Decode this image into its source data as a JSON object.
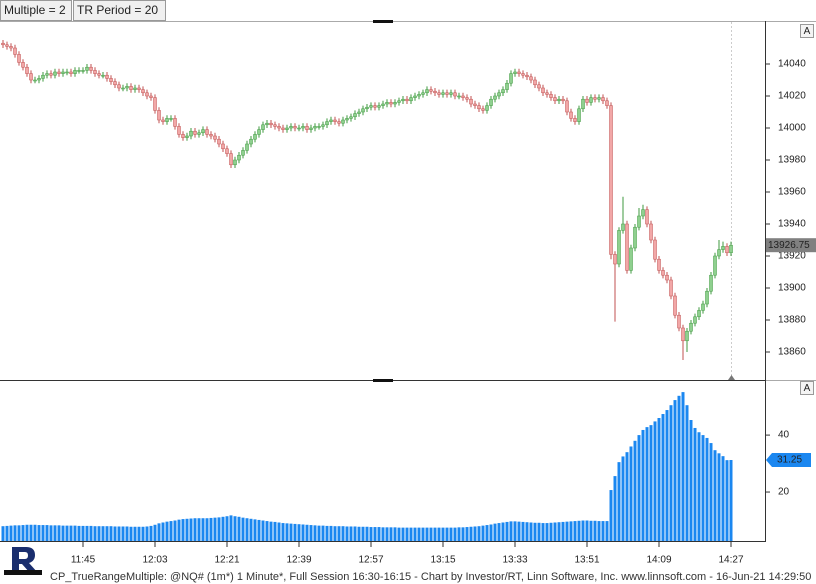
{
  "toolbar": {
    "buttons": [
      "Multiple = 2",
      "TR Period = 20"
    ]
  },
  "pane_buttons": [
    "A",
    "A"
  ],
  "footer": "CP_TrueRangeMultiple: @NQ# (1m*) 1 Minute*, Full Session 16:30-16:15 - Chart by Investor/RT, Linn Software, Inc. www.linnsoft.com - 16-Jun-21 14:29:50",
  "chart_data": [
    {
      "type": "candlestick",
      "up_color": "#8fd08f",
      "down_color": "#f2a7a7",
      "tag_color": "#808080",
      "ylim": [
        13842.5,
        14066.25
      ],
      "yticks": [
        14040,
        14020,
        14000,
        13980,
        13960,
        13940,
        13920,
        13900,
        13880,
        13860
      ],
      "open": [
        14053,
        14052,
        14051,
        14050,
        14046,
        14041,
        14038,
        14034,
        14030,
        14030,
        14031,
        14033,
        14034,
        14033,
        14035,
        14034,
        14035,
        14035,
        14034,
        14036,
        14036,
        14036,
        14038,
        14036,
        14034,
        14033,
        14033,
        14031,
        14029,
        14027,
        14025,
        14025,
        14026,
        14024,
        14025,
        14024,
        14022,
        14020,
        14019,
        14011,
        14005,
        14004,
        14006,
        14006,
        14001,
        13996,
        13994,
        13995,
        13998,
        13996,
        13997,
        13999,
        13996,
        13995,
        13993,
        13990,
        13987,
        13984,
        13977,
        13980,
        13983,
        13986,
        13990,
        13993,
        13996,
        13999,
        14002,
        14003,
        14002,
        14001,
        14000,
        13999,
        14000,
        14001,
        14000,
        14000,
        14001,
        13999,
        14000,
        14001,
        14001,
        14002,
        14004,
        14005,
        14004,
        14003,
        14005,
        14006,
        14007,
        14009,
        14010,
        14012,
        14013,
        14014,
        14013,
        14014,
        14015,
        14016,
        14015,
        14016,
        14017,
        14018,
        14017,
        14019,
        14020,
        14021,
        14022,
        14024,
        14023,
        14022,
        14021,
        14022,
        14021,
        14022,
        14020,
        14020,
        14019,
        14018,
        14015,
        14014,
        14012,
        14011,
        14014,
        14018,
        14020,
        14022,
        14024,
        14028,
        14034,
        14035,
        14034,
        14033,
        14032,
        14030,
        14027,
        14025,
        14022,
        14021,
        14019,
        14017,
        14018,
        14017,
        14010,
        14006,
        14004,
        14012,
        14018,
        14016,
        14019,
        14018,
        14019,
        14017,
        14014,
        13921,
        13915,
        13936,
        13940,
        13911,
        13925,
        13938,
        13945,
        13949,
        13940,
        13930,
        13918,
        13911,
        13908,
        13905,
        13895,
        13883,
        13875,
        13867,
        13873,
        13878,
        13882,
        13886,
        13890,
        13898,
        13908,
        13920,
        13924,
        13926,
        13922
      ],
      "high": [
        14055,
        14054,
        14053,
        14052,
        14048,
        14043,
        14040,
        14036,
        14032,
        14033,
        14035,
        14036,
        14036,
        14037,
        14037,
        14037,
        14037,
        14037,
        14038,
        14038,
        14038,
        14040,
        14040,
        14038,
        14036,
        14035,
        14035,
        14033,
        14031,
        14029,
        14027,
        14028,
        14028,
        14027,
        14027,
        14026,
        14024,
        14022,
        14021,
        14013,
        14007,
        14008,
        14008,
        14008,
        14003,
        13998,
        13997,
        14000,
        14000,
        13999,
        14001,
        14001,
        13998,
        13997,
        13995,
        13992,
        13989,
        13986,
        13982,
        13985,
        13988,
        13992,
        13995,
        13998,
        14001,
        14004,
        14005,
        14005,
        14004,
        14003,
        14002,
        14002,
        14003,
        14003,
        14002,
        14003,
        14003,
        14002,
        14003,
        14003,
        14004,
        14006,
        14007,
        14007,
        14006,
        14007,
        14008,
        14009,
        14011,
        14012,
        14014,
        14015,
        14016,
        14016,
        14016,
        14017,
        14018,
        14018,
        14018,
        14019,
        14020,
        14020,
        14021,
        14022,
        14023,
        14024,
        14026,
        14026,
        14025,
        14024,
        14024,
        14024,
        14024,
        14024,
        14022,
        14022,
        14021,
        14020,
        14017,
        14016,
        14014,
        14016,
        14020,
        14022,
        14024,
        14026,
        14030,
        14036,
        14037,
        14037,
        14036,
        14035,
        14034,
        14032,
        14029,
        14027,
        14024,
        14023,
        14021,
        14020,
        14020,
        14019,
        14012,
        14008,
        14014,
        14020,
        14020,
        14021,
        14021,
        14021,
        14021,
        14019,
        14016,
        13923,
        13938,
        13957,
        13942,
        13927,
        13940,
        13950,
        13952,
        13951,
        13942,
        13932,
        13920,
        13913,
        13910,
        13907,
        13897,
        13885,
        13877,
        13875,
        13880,
        13884,
        13888,
        13892,
        13900,
        13910,
        13922,
        13930,
        13929,
        13928,
        13929
      ],
      "low": [
        14050,
        14049,
        14048,
        14044,
        14039,
        14036,
        14032,
        14028,
        14028,
        14028,
        14029,
        14031,
        14031,
        14031,
        14032,
        14032,
        14033,
        14032,
        14032,
        14034,
        14034,
        14034,
        14034,
        14032,
        14031,
        14031,
        14029,
        14027,
        14025,
        14023,
        14023,
        14023,
        14022,
        14022,
        14022,
        14020,
        14018,
        14017,
        14009,
        14003,
        14002,
        14002,
        14004,
        13999,
        13994,
        13992,
        13992,
        13993,
        13994,
        13994,
        13995,
        13994,
        13993,
        13991,
        13988,
        13985,
        13982,
        13975,
        13975,
        13978,
        13981,
        13984,
        13988,
        13991,
        13994,
        13997,
        14000,
        14000,
        13999,
        13998,
        13997,
        13997,
        13998,
        13998,
        13998,
        13998,
        13997,
        13997,
        13998,
        13999,
        13999,
        14000,
        14002,
        14002,
        14001,
        14001,
        14003,
        14004,
        14005,
        14007,
        14008,
        14010,
        14011,
        14011,
        14011,
        14012,
        14013,
        14013,
        14013,
        14014,
        14015,
        14015,
        14015,
        14017,
        14018,
        14019,
        14020,
        14021,
        14020,
        14019,
        14019,
        14019,
        14019,
        14018,
        14018,
        14017,
        14016,
        14013,
        14012,
        14010,
        14009,
        14009,
        14012,
        14016,
        14018,
        14020,
        14022,
        14026,
        14032,
        14032,
        14031,
        14030,
        14028,
        14025,
        14023,
        14020,
        14019,
        14017,
        14015,
        14015,
        14015,
        14008,
        14004,
        14002,
        14002,
        14010,
        14014,
        14014,
        14016,
        14016,
        14015,
        14012,
        13918,
        13879,
        13913,
        13934,
        13909,
        13909,
        13923,
        13936,
        13943,
        13938,
        13928,
        13916,
        13909,
        13906,
        13903,
        13893,
        13881,
        13873,
        13855,
        13860,
        13871,
        13876,
        13880,
        13884,
        13888,
        13896,
        13906,
        13918,
        13922,
        13920,
        13920
      ],
      "close": [
        14052,
        14051,
        14050,
        14046,
        14041,
        14038,
        14034,
        14030,
        14030,
        14031,
        14033,
        14034,
        14033,
        14035,
        14034,
        14035,
        14035,
        14034,
        14036,
        14036,
        14036,
        14038,
        14036,
        14034,
        14033,
        14033,
        14031,
        14029,
        14027,
        14025,
        14025,
        14026,
        14024,
        14025,
        14024,
        14022,
        14020,
        14019,
        14011,
        14005,
        14004,
        14006,
        14006,
        14001,
        13996,
        13994,
        13995,
        13998,
        13996,
        13997,
        13999,
        13996,
        13995,
        13993,
        13990,
        13987,
        13984,
        13977,
        13980,
        13983,
        13986,
        13990,
        13993,
        13996,
        13999,
        14002,
        14003,
        14002,
        14001,
        14000,
        13999,
        14000,
        14001,
        14000,
        14000,
        14001,
        13999,
        14000,
        14001,
        14001,
        14002,
        14004,
        14005,
        14004,
        14003,
        14005,
        14006,
        14007,
        14009,
        14010,
        14012,
        14013,
        14014,
        14013,
        14014,
        14015,
        14016,
        14015,
        14016,
        14017,
        14018,
        14017,
        14019,
        14020,
        14021,
        14022,
        14024,
        14023,
        14022,
        14021,
        14022,
        14021,
        14022,
        14020,
        14020,
        14019,
        14018,
        14015,
        14014,
        14012,
        14011,
        14014,
        14018,
        14020,
        14022,
        14024,
        14028,
        14034,
        14035,
        14034,
        14033,
        14032,
        14030,
        14027,
        14025,
        14022,
        14021,
        14019,
        14017,
        14018,
        14017,
        14010,
        14006,
        14004,
        14012,
        14018,
        14016,
        14019,
        14018,
        14019,
        14017,
        14014,
        13921,
        13915,
        13936,
        13940,
        13911,
        13925,
        13938,
        13945,
        13949,
        13940,
        13930,
        13918,
        13911,
        13908,
        13905,
        13895,
        13883,
        13875,
        13867,
        13873,
        13878,
        13882,
        13886,
        13890,
        13898,
        13908,
        13920,
        13924,
        13926,
        13922,
        13926.75
      ]
    },
    {
      "type": "bar",
      "color": "#1b87f0",
      "ylim": [
        2.8,
        59
      ],
      "yticks": [
        40,
        20
      ],
      "categories": [
        null,
        null,
        null,
        null,
        null,
        null,
        null,
        null,
        null,
        null,
        null,
        null,
        null,
        null,
        null,
        null,
        null,
        null,
        null,
        null,
        "11:45",
        null,
        null,
        null,
        null,
        null,
        null,
        null,
        null,
        null,
        null,
        null,
        null,
        null,
        null,
        null,
        null,
        null,
        "12:03",
        null,
        null,
        null,
        null,
        null,
        null,
        null,
        null,
        null,
        null,
        null,
        null,
        null,
        null,
        null,
        null,
        null,
        "12:21",
        null,
        null,
        null,
        null,
        null,
        null,
        null,
        null,
        null,
        null,
        null,
        null,
        null,
        null,
        null,
        null,
        null,
        "12:39",
        null,
        null,
        null,
        null,
        null,
        null,
        null,
        null,
        null,
        null,
        null,
        null,
        null,
        null,
        null,
        null,
        null,
        "12:57",
        null,
        null,
        null,
        null,
        null,
        null,
        null,
        null,
        null,
        null,
        null,
        null,
        null,
        null,
        null,
        null,
        null,
        "13:15",
        null,
        null,
        null,
        null,
        null,
        null,
        null,
        null,
        null,
        null,
        null,
        null,
        null,
        null,
        null,
        null,
        null,
        "13:33",
        null,
        null,
        null,
        null,
        null,
        null,
        null,
        null,
        null,
        null,
        null,
        null,
        null,
        null,
        null,
        null,
        null,
        "13:51",
        null,
        null,
        null,
        null,
        null,
        null,
        null,
        null,
        null,
        null,
        null,
        null,
        null,
        null,
        null,
        null,
        null,
        "14:09",
        null,
        null,
        null,
        null,
        null,
        null,
        null,
        null,
        null,
        null,
        null,
        null,
        null,
        null,
        null,
        null,
        null,
        "14:27"
      ],
      "values": [
        8,
        8.1,
        8.2,
        8.3,
        8.3,
        8.4,
        8.5,
        8.5,
        8.5,
        8.4,
        8.4,
        8.4,
        8.3,
        8.3,
        8.3,
        8.2,
        8.2,
        8.2,
        8.2,
        8.1,
        8.1,
        8.1,
        8.1,
        8,
        8,
        8,
        8,
        8,
        7.9,
        7.9,
        7.9,
        7.9,
        7.8,
        7.8,
        7.8,
        7.8,
        7.9,
        8.1,
        8.5,
        9,
        9.3,
        9.6,
        9.8,
        10,
        10.3,
        10.5,
        10.6,
        10.7,
        10.8,
        10.8,
        10.8,
        10.8,
        10.9,
        11,
        11.1,
        11.3,
        11.5,
        11.8,
        11.5,
        11.3,
        11,
        10.8,
        10.6,
        10.4,
        10.2,
        10,
        9.8,
        9.6,
        9.5,
        9.3,
        9.1,
        9,
        8.9,
        8.8,
        8.7,
        8.6,
        8.5,
        8.4,
        8.3,
        8.2,
        8.2,
        8.1,
        8.1,
        8,
        8,
        8,
        7.9,
        7.9,
        7.9,
        7.8,
        7.8,
        7.8,
        7.7,
        7.7,
        7.7,
        7.6,
        7.6,
        7.6,
        7.6,
        7.5,
        7.5,
        7.5,
        7.5,
        7.5,
        7.5,
        7.5,
        7.5,
        7.5,
        7.5,
        7.5,
        7.5,
        7.5,
        7.5,
        7.5,
        7.6,
        7.6,
        7.7,
        7.8,
        7.9,
        8,
        8.2,
        8.4,
        8.6,
        8.9,
        9.1,
        9.3,
        9.5,
        9.7,
        9.7,
        9.6,
        9.5,
        9.4,
        9.3,
        9.2,
        9.2,
        9.1,
        9.1,
        9.2,
        9.3,
        9.4,
        9.5,
        9.6,
        9.7,
        9.8,
        9.9,
        10,
        10,
        9.9,
        9.9,
        9.8,
        9.8,
        9.8,
        20.7,
        25.6,
        30.5,
        32.5,
        34,
        36,
        38,
        40,
        41.8,
        42.8,
        43.5,
        44.8,
        46,
        47.4,
        48.8,
        50.5,
        52.3,
        53.8,
        55.1,
        50.5,
        45.3,
        42.5,
        41,
        40,
        39,
        37.2,
        34.7,
        33.6,
        32.6,
        31.2,
        31.25
      ]
    }
  ]
}
